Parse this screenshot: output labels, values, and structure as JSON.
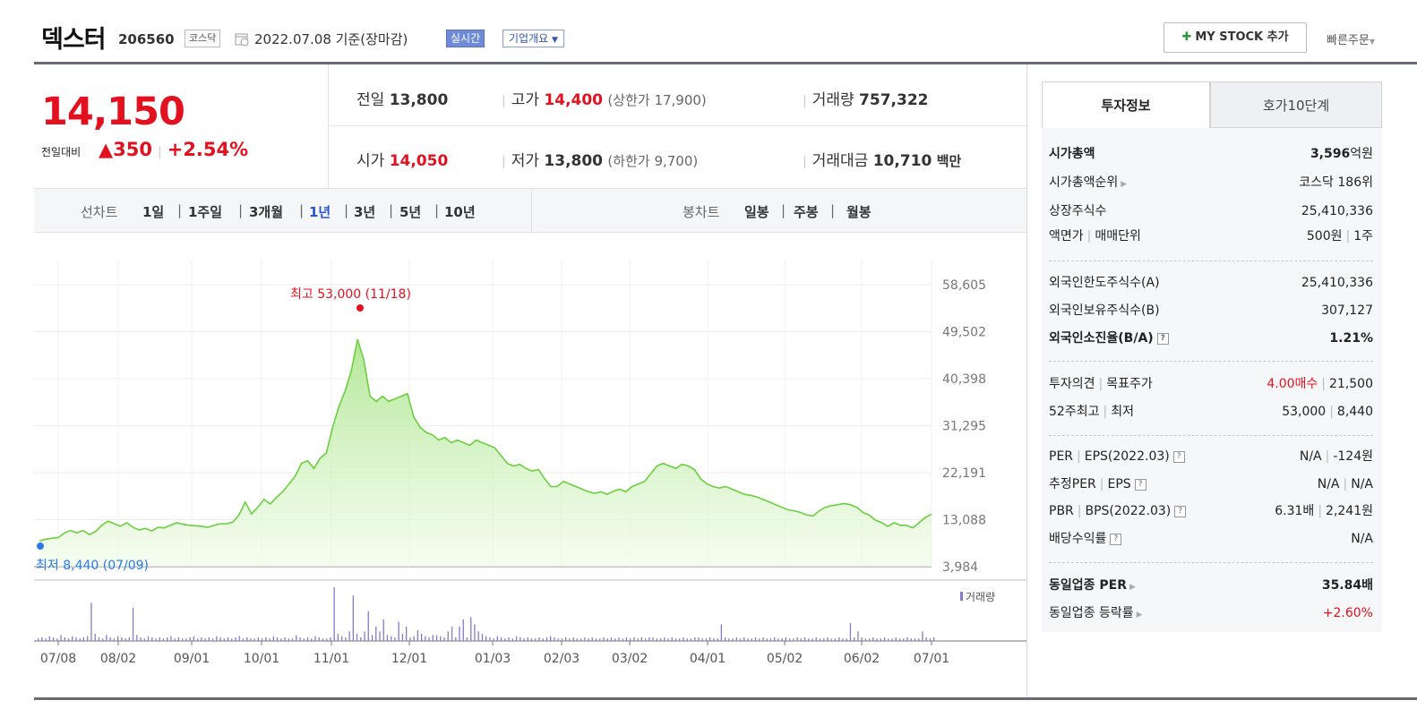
{
  "header": {
    "name": "덱스터",
    "code": "206560",
    "market": "코스닥",
    "date_text": "2022.07.08 기준(장마감)",
    "realtime_btn": "실시간",
    "corp_btn": "기업개요",
    "mystock_btn": "MY STOCK 추가",
    "quick_order": "빠른주문"
  },
  "price": {
    "current": "14,150",
    "change_label": "전일대비",
    "change": "▲350",
    "change_pct": "+2.54%"
  },
  "quote": {
    "prev_label": "전일",
    "prev": "13,800",
    "high_label": "고가",
    "high": "14,400",
    "upper_limit": "(상한가 17,900)",
    "volume_label": "거래량",
    "volume": "757,322",
    "open_label": "시가",
    "open": "14,050",
    "low_label": "저가",
    "low": "13,800",
    "lower_limit": "(하한가 9,700)",
    "amount_label": "거래대금",
    "amount": "10,710",
    "amount_unit": "백만"
  },
  "periods": {
    "line_label": "선차트",
    "line_items": [
      "1일",
      "1주일",
      "3개월",
      "1년",
      "3년",
      "5년",
      "10년"
    ],
    "active": "1년",
    "candle_label": "봉차트",
    "candle_items": [
      "일봉",
      "주봉",
      "월봉"
    ]
  },
  "tabs": {
    "invest": "투자정보",
    "hoga": "호가10단계"
  },
  "info": {
    "market_cap_label": "시가총액",
    "market_cap": "3,596",
    "market_cap_unit": "억원",
    "rank_label": "시가총액순위",
    "rank": "코스닥 186위",
    "shares_label": "상장주식수",
    "shares": "25,410,336",
    "par_label": "액면가",
    "par_label2": "매매단위",
    "par": "500원",
    "unit": "1주",
    "foreign_limit_label": "외국인한도주식수(A)",
    "foreign_limit": "25,410,336",
    "foreign_hold_label": "외국인보유주식수(B)",
    "foreign_hold": "307,127",
    "foreign_ratio_label": "외국인소진율(B/A)",
    "foreign_ratio": "1.21%",
    "opinion_label": "투자의견",
    "target_label": "목표주가",
    "opinion": "4.00매수",
    "target": "21,500",
    "w52_label": "52주최고",
    "w52_label2": "최저",
    "w52_high": "53,000",
    "w52_low": "8,440",
    "per_label": "PER",
    "eps_label": "EPS(2022.03)",
    "per": "N/A",
    "eps": "-124원",
    "est_per_label": "추정PER",
    "est_eps_label": "EPS",
    "est_per": "N/A",
    "est_eps": "N/A",
    "pbr_label": "PBR",
    "bps_label": "BPS(2022.03)",
    "pbr": "6.31배",
    "bps": "2,241원",
    "div_label": "배당수익률",
    "div": "N/A",
    "sector_per_label": "동일업종 PER",
    "sector_per": "35.84배",
    "sector_chg_label": "동일업종 등락률",
    "sector_chg": "+2.60%"
  },
  "chart_data": {
    "type": "area",
    "y_ticks": [
      "58,605",
      "49,502",
      "40,398",
      "31,295",
      "22,191",
      "13,088",
      "3,984"
    ],
    "y_tick_values": [
      58605,
      49502,
      40398,
      31295,
      22191,
      13088,
      3984
    ],
    "x_labels": [
      "07/08",
      "08/02",
      "09/01",
      "10/01",
      "11/01",
      "12/01",
      "01/03",
      "02/03",
      "03/02",
      "04/01",
      "05/02",
      "06/02",
      "07/01"
    ],
    "max_label": "최고 53,000 (11/18)",
    "min_label": "최저 8,440 (07/09)",
    "volume_legend": "거래량",
    "series": [
      9000,
      9300,
      9500,
      9600,
      10500,
      11000,
      10500,
      11000,
      10200,
      10800,
      12000,
      12800,
      12300,
      11800,
      12500,
      11600,
      11100,
      11400,
      10900,
      11600,
      11500,
      12000,
      12500,
      12200,
      12000,
      11900,
      11800,
      11600,
      12000,
      12300,
      12300,
      12600,
      14000,
      16500,
      14200,
      15500,
      17000,
      16100,
      17400,
      18500,
      20000,
      21500,
      24000,
      24500,
      23000,
      25000,
      26000,
      31000,
      35000,
      38000,
      42000,
      48000,
      44000,
      37000,
      36000,
      37000,
      36000,
      36500,
      37000,
      37500,
      33000,
      31000,
      30000,
      29500,
      28500,
      29000,
      28000,
      28500,
      28000,
      27500,
      28500,
      28000,
      27500,
      27000,
      25500,
      24000,
      23500,
      23800,
      23000,
      22500,
      22800,
      21000,
      19500,
      19500,
      20500,
      20000,
      19500,
      19000,
      18500,
      18200,
      18500,
      18000,
      18600,
      19000,
      18500,
      19500,
      20000,
      20500,
      22000,
      23500,
      24000,
      23500,
      23000,
      23800,
      23500,
      22800,
      21000,
      20000,
      19500,
      19200,
      19500,
      19000,
      18500,
      18000,
      17800,
      17500,
      17000,
      16500,
      16000,
      15500,
      15000,
      14800,
      14500,
      14000,
      13800,
      14800,
      15500,
      15800,
      16000,
      16200,
      16000,
      15500,
      14500,
      14000,
      13000,
      12500,
      11800,
      12500,
      12000,
      12000,
      11500,
      12500,
      13500,
      14150
    ],
    "volume": [
      2,
      3,
      2,
      4,
      3,
      2,
      5,
      3,
      2,
      4,
      3,
      2,
      3,
      4,
      32,
      6,
      3,
      2,
      5,
      3,
      2,
      4,
      3,
      2,
      3,
      28,
      5,
      3,
      2,
      4,
      3,
      2,
      3,
      2,
      3,
      4,
      2,
      3,
      2,
      2,
      3,
      4,
      2,
      3,
      2,
      3,
      2,
      4,
      3,
      2,
      3,
      2,
      3,
      4,
      2,
      3,
      2,
      2,
      3,
      2,
      3,
      2,
      4,
      3,
      2,
      3,
      2,
      2,
      5,
      3,
      2,
      3,
      2,
      4,
      3,
      2,
      2,
      3,
      45,
      6,
      4,
      3,
      8,
      38,
      6,
      3,
      8,
      25,
      5,
      12,
      8,
      18,
      5,
      4,
      3,
      16,
      6,
      12,
      3,
      4,
      9,
      6,
      4,
      3,
      5,
      5,
      4,
      3,
      8,
      12,
      3,
      12,
      18,
      3,
      20,
      14,
      8,
      6,
      4,
      3,
      2,
      4,
      3,
      2,
      3,
      2,
      4,
      3,
      2,
      3,
      2,
      2,
      3,
      2,
      3,
      4,
      3,
      2,
      2,
      3,
      2,
      3,
      2,
      2,
      3,
      2,
      3,
      2,
      2,
      3,
      2,
      3,
      2,
      3,
      2,
      3,
      2,
      3,
      2,
      3,
      2,
      3,
      3,
      2,
      2,
      3,
      2,
      3,
      2,
      2,
      3,
      2,
      2,
      3,
      3,
      2,
      2,
      3,
      2,
      2,
      14,
      3,
      2,
      2,
      3,
      2,
      3,
      2,
      2,
      3,
      2,
      3,
      2,
      2,
      3,
      2,
      2,
      3,
      2,
      2,
      3,
      2,
      3,
      2,
      2,
      3,
      2,
      2,
      3,
      2,
      2,
      3,
      2,
      2,
      15,
      3,
      8,
      3,
      2,
      2,
      3,
      2,
      2,
      3,
      2,
      2,
      3,
      2,
      2,
      3,
      2,
      2,
      2,
      8,
      3,
      2,
      3
    ]
  }
}
